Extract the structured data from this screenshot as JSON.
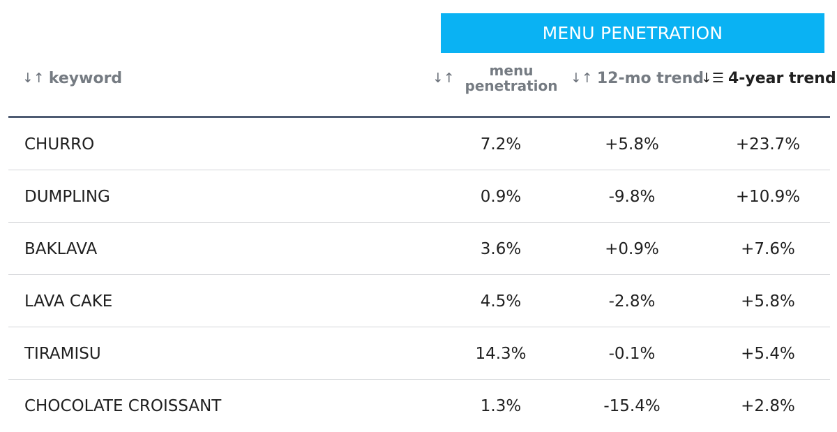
{
  "group_header": "MENU PENETRATION",
  "columns": {
    "keyword": {
      "label": "keyword",
      "sort_icon": "sort-arrows-icon",
      "glyph": "↓↑"
    },
    "menu_penetration": {
      "label_line1": "menu",
      "label_line2": "penetration",
      "sort_icon": "sort-arrows-icon",
      "glyph": "↓↑"
    },
    "trend_12mo": {
      "label": "12-mo trend",
      "sort_icon": "sort-arrows-icon",
      "glyph": "↓↑"
    },
    "trend_4yr": {
      "label": "4-year trend",
      "sort_icon": "sort-descending-icon",
      "glyph": "↓☰"
    }
  },
  "rows": [
    {
      "keyword": "CHURRO",
      "menu_penetration": "7.2%",
      "trend_12mo": "+5.8%",
      "trend_4yr": "+23.7%"
    },
    {
      "keyword": "DUMPLING",
      "menu_penetration": "0.9%",
      "trend_12mo": "-9.8%",
      "trend_4yr": "+10.9%"
    },
    {
      "keyword": "BAKLAVA",
      "menu_penetration": "3.6%",
      "trend_12mo": "+0.9%",
      "trend_4yr": "+7.6%"
    },
    {
      "keyword": "LAVA CAKE",
      "menu_penetration": "4.5%",
      "trend_12mo": "-2.8%",
      "trend_4yr": "+5.8%"
    },
    {
      "keyword": "TIRAMISU",
      "menu_penetration": "14.3%",
      "trend_12mo": "-0.1%",
      "trend_4yr": "+5.4%"
    },
    {
      "keyword": "CHOCOLATE CROISSANT",
      "menu_penetration": "1.3%",
      "trend_12mo": "-15.4%",
      "trend_4yr": "+2.8%"
    }
  ],
  "colors": {
    "banner": "#0ab2f3",
    "header_text": "#757b82",
    "header_rule": "#4e5b72",
    "row_divider": "#d3d5d8"
  }
}
